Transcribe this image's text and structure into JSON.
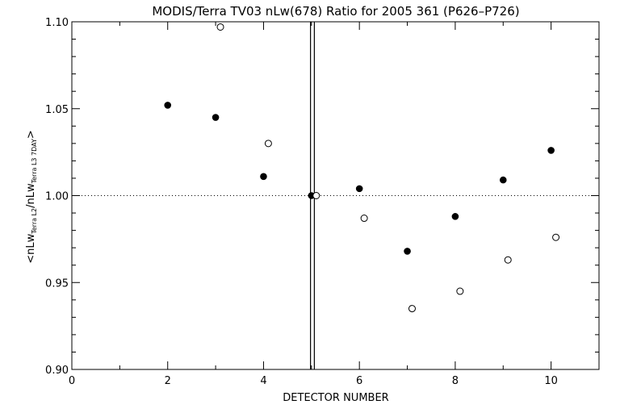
{
  "chart_data": {
    "type": "scatter",
    "title": "MODIS/Terra TV03 nLw(678) Ratio for 2005 361 (P626–P726)",
    "xlabel": "DETECTOR NUMBER",
    "ylabel": {
      "prefix": "<nLw",
      "sub1": "Terra L2",
      "middle": "/nLw",
      "sub2": "Terra L3 7DAY",
      "suffix": ">"
    },
    "xlim": [
      0,
      11
    ],
    "ylim": [
      0.9,
      1.1
    ],
    "x_ticks": [
      0,
      2,
      4,
      6,
      8,
      10
    ],
    "x_tick_labels": [
      "0",
      "2",
      "4",
      "6",
      "8",
      "10"
    ],
    "y_ticks": [
      0.9,
      0.95,
      1.0,
      1.05,
      1.1
    ],
    "y_tick_labels": [
      "0.90",
      "0.95",
      "1.00",
      "1.05",
      "1.10"
    ],
    "reference_line": 1.0,
    "vertical_lines": [
      4.98,
      5.06
    ],
    "series": [
      {
        "marker": "filled-circle",
        "x": [
          2,
          3,
          4,
          5,
          6,
          7,
          8,
          9,
          10
        ],
        "y": [
          1.052,
          1.045,
          1.011,
          1.0,
          1.004,
          0.968,
          0.988,
          1.009,
          1.026
        ]
      },
      {
        "marker": "open-circle",
        "x": [
          3.1,
          4.1,
          5.1,
          6.1,
          7.1,
          8.1,
          9.1,
          10.1
        ],
        "y": [
          1.097,
          1.03,
          1.0,
          0.987,
          0.935,
          0.945,
          0.963,
          0.976
        ]
      }
    ]
  }
}
